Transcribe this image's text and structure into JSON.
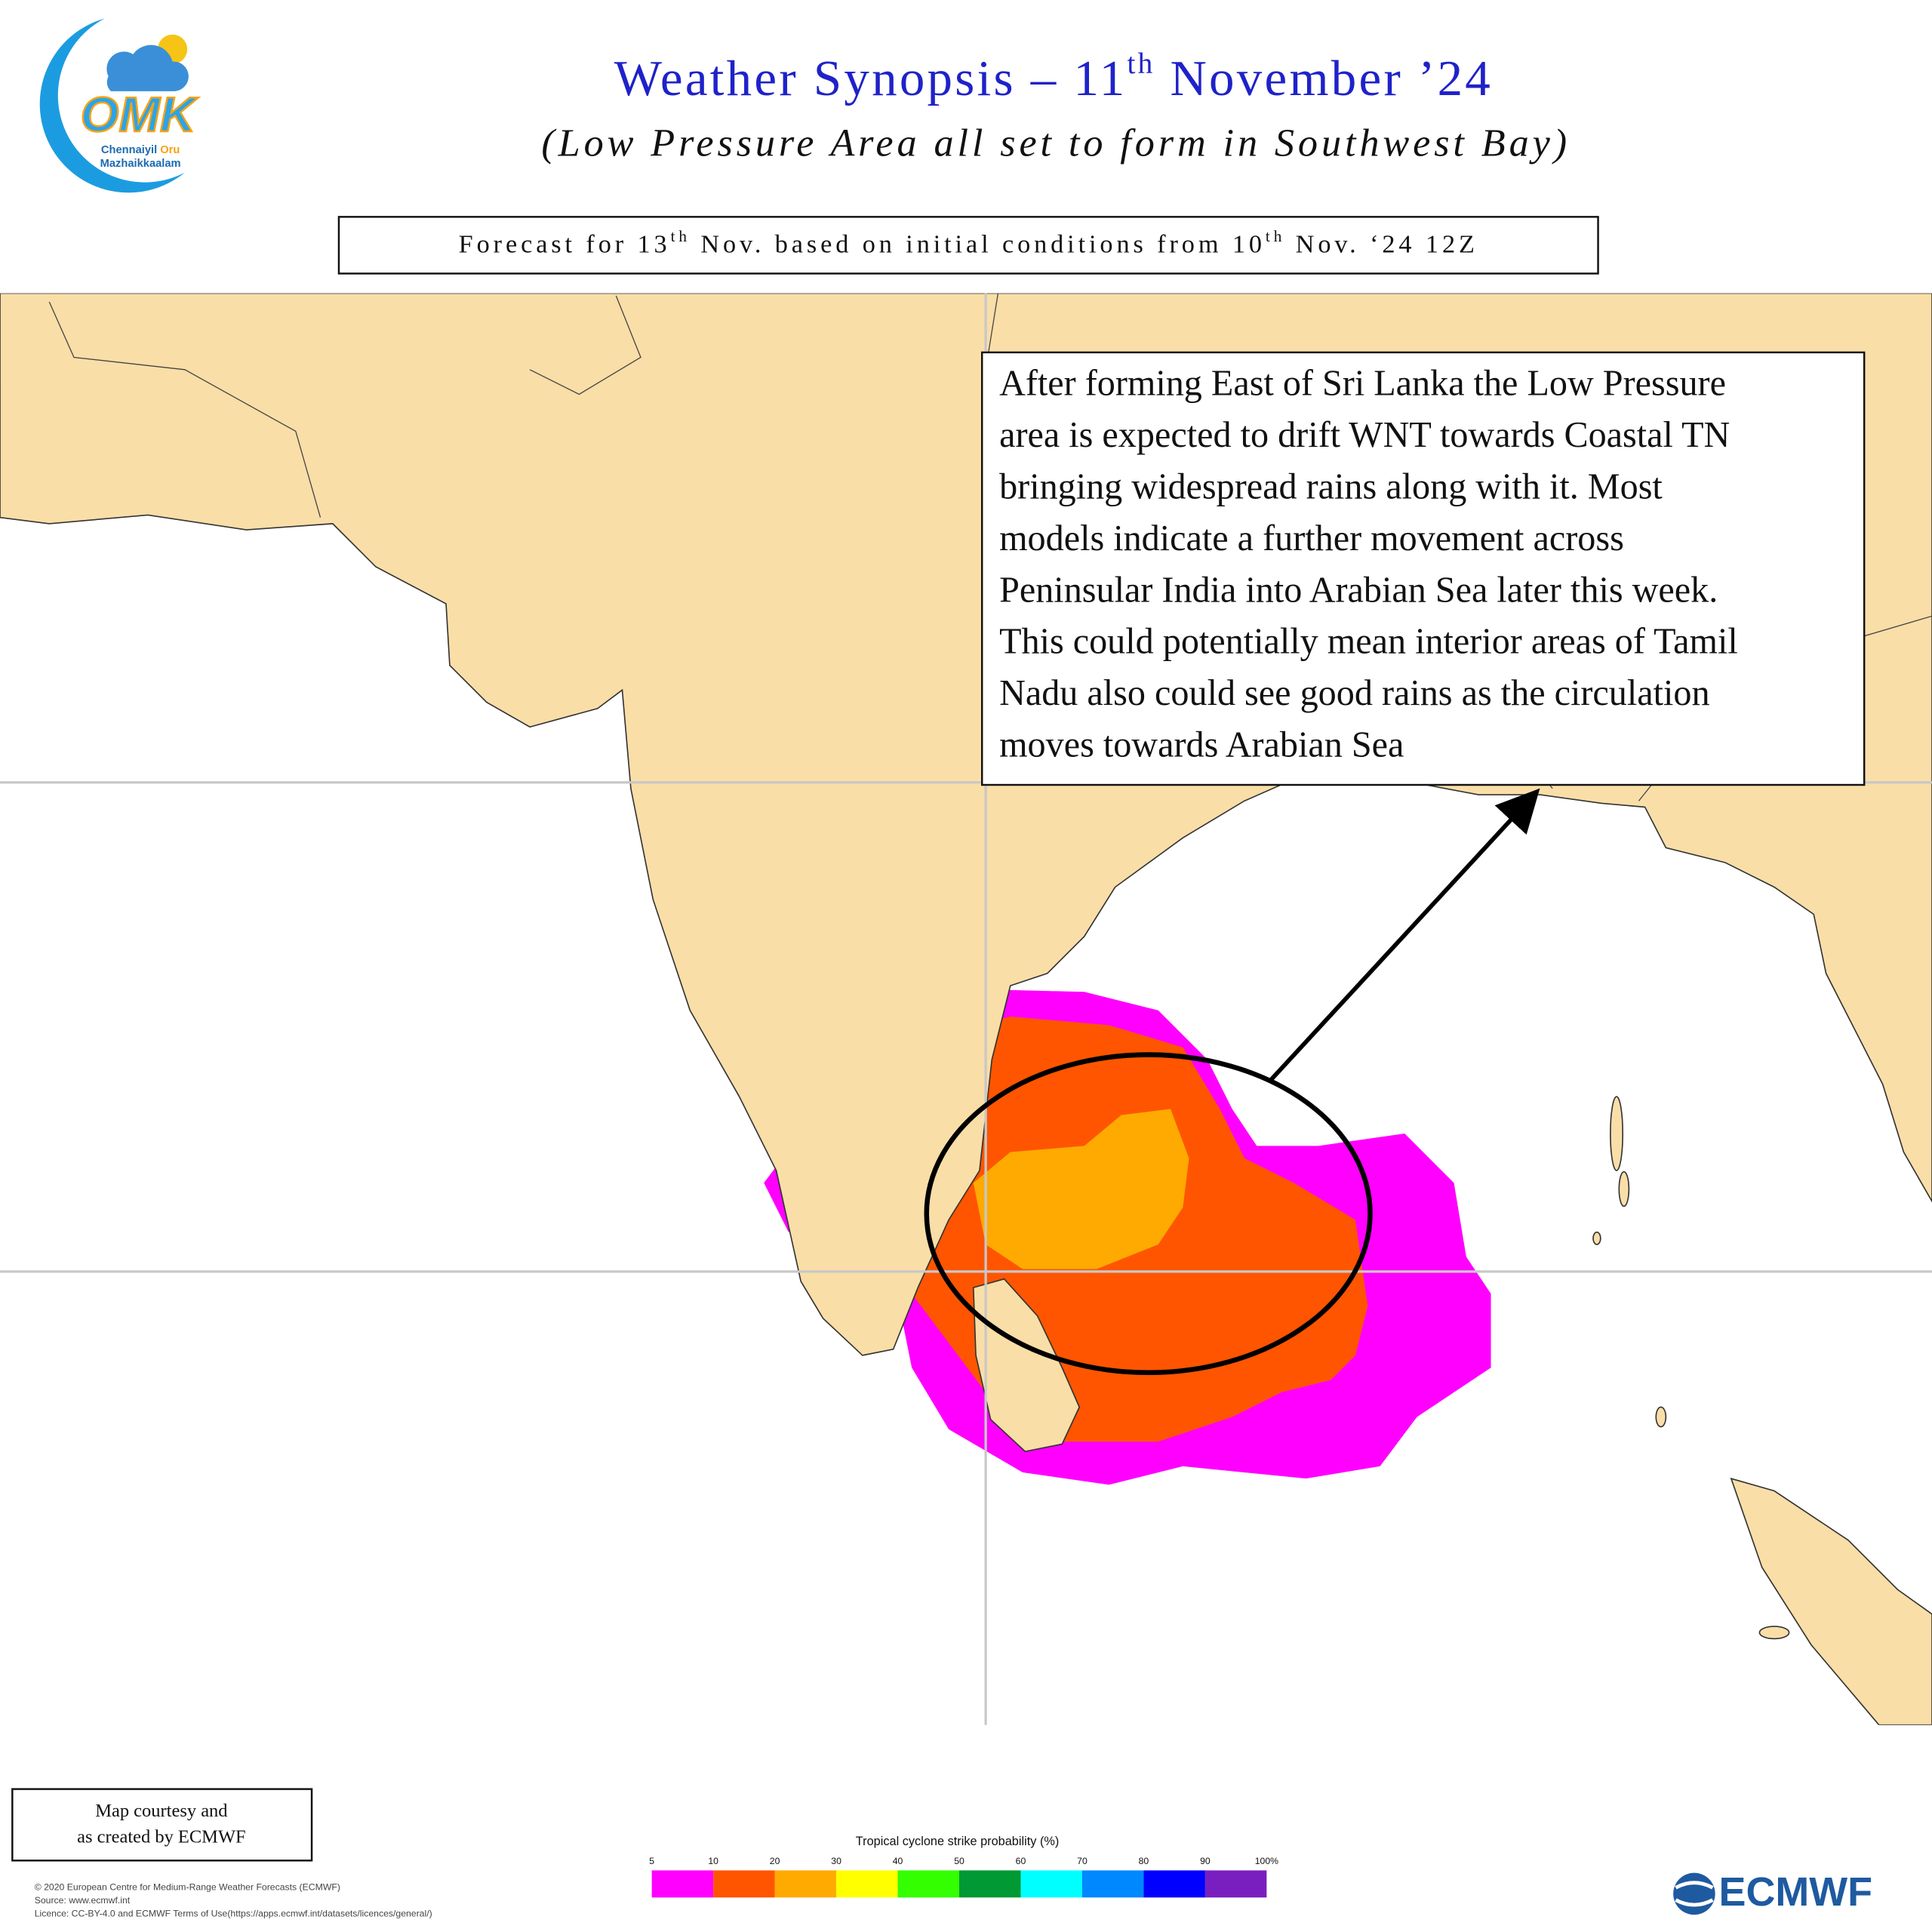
{
  "header": {
    "title": [
      "Weather Synopsis – 11",
      "th",
      " November ’24"
    ],
    "subtitle": "(Low Pressure Area all set to form in Southwest Bay)"
  },
  "logo": {
    "mark": "OMK",
    "line1": [
      "Chennaiyil",
      " Oru"
    ],
    "line2": "Mazhaikkaalam"
  },
  "forecast_box": [
    "Forecast for 13",
    "th",
    " Nov. based on initial conditions from 10",
    "th",
    " Nov. ‘24 12Z"
  ],
  "annotation": {
    "lines": [
      "After forming East of Sri Lanka the Low Pressure",
      "area is expected to drift WNT towards Coastal TN",
      "bringing widespread rains along with it. Most",
      "models indicate a further movement across",
      "Peninsular India into Arabian Sea later this week.",
      "This could potentially mean interior areas of Tamil",
      "Nadu also could see good rains as the circulation",
      "moves towards Arabian Sea"
    ]
  },
  "credit": {
    "lines": [
      "Map courtesy and",
      "as created by ECMWF"
    ]
  },
  "colorbar": {
    "title": "Tropical cyclone strike probability (%)",
    "ticks": [
      5,
      10,
      20,
      30,
      40,
      50,
      60,
      70,
      80,
      90,
      {
        "value": 100,
        "label": "100%"
      }
    ],
    "colors": [
      "#ff00ff",
      "#ff5500",
      "#ffaa00",
      "#ffff00",
      "#33ff00",
      "#009933",
      "#00ffff",
      "#0088ff",
      "#0000ff",
      "#7a1fbf"
    ]
  },
  "copyright": [
    "© 2020 European Centre for Medium-Range Weather Forecasts (ECMWF)",
    "Source: www.ecmwf.int",
    "Licence: CC-BY-4.0 and ECMWF Terms of Use(https://apps.ecmwf.int/datasets/licences/general/)"
  ],
  "ecmwf_logo": "ECMWF"
}
